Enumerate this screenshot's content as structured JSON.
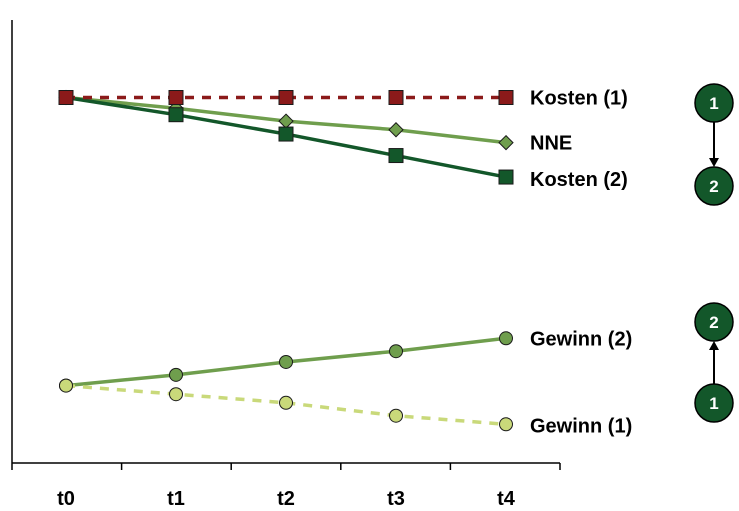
{
  "chart_data": {
    "type": "line",
    "title": "",
    "xlabel": "",
    "ylabel": "",
    "categories": [
      "t0",
      "t1",
      "t2",
      "t3",
      "t4"
    ],
    "ylim": [
      0,
      100
    ],
    "grid": false,
    "legend": "right, labels at series ends",
    "series": [
      {
        "name": "Kosten (1)",
        "values": [
          85,
          85,
          85,
          85,
          85
        ],
        "color": "#8b1a1a",
        "line": "dashed",
        "marker": "square"
      },
      {
        "name": "NNE",
        "values": [
          85,
          82.5,
          79.5,
          77.5,
          74.5
        ],
        "color": "#6f9e4d",
        "line": "solid",
        "marker": "diamond"
      },
      {
        "name": "Kosten (2)",
        "values": [
          85,
          81,
          76.5,
          71.5,
          66.5
        ],
        "color": "#13572a",
        "line": "solid",
        "marker": "square"
      },
      {
        "name": "Gewinn (2)",
        "values": [
          18,
          20.5,
          23.5,
          26,
          29
        ],
        "color": "#6f9e4d",
        "line": "solid",
        "marker": "circle"
      },
      {
        "name": "Gewinn (1)",
        "values": [
          18,
          16,
          14,
          11,
          9
        ],
        "color": "#c9d97a",
        "line": "dashed",
        "marker": "circle"
      }
    ],
    "annotations": [
      {
        "group": "Kosten",
        "from": "1",
        "to": "2",
        "direction": "down"
      },
      {
        "group": "Gewinn",
        "from": "1",
        "to": "2",
        "direction": "up"
      }
    ]
  }
}
